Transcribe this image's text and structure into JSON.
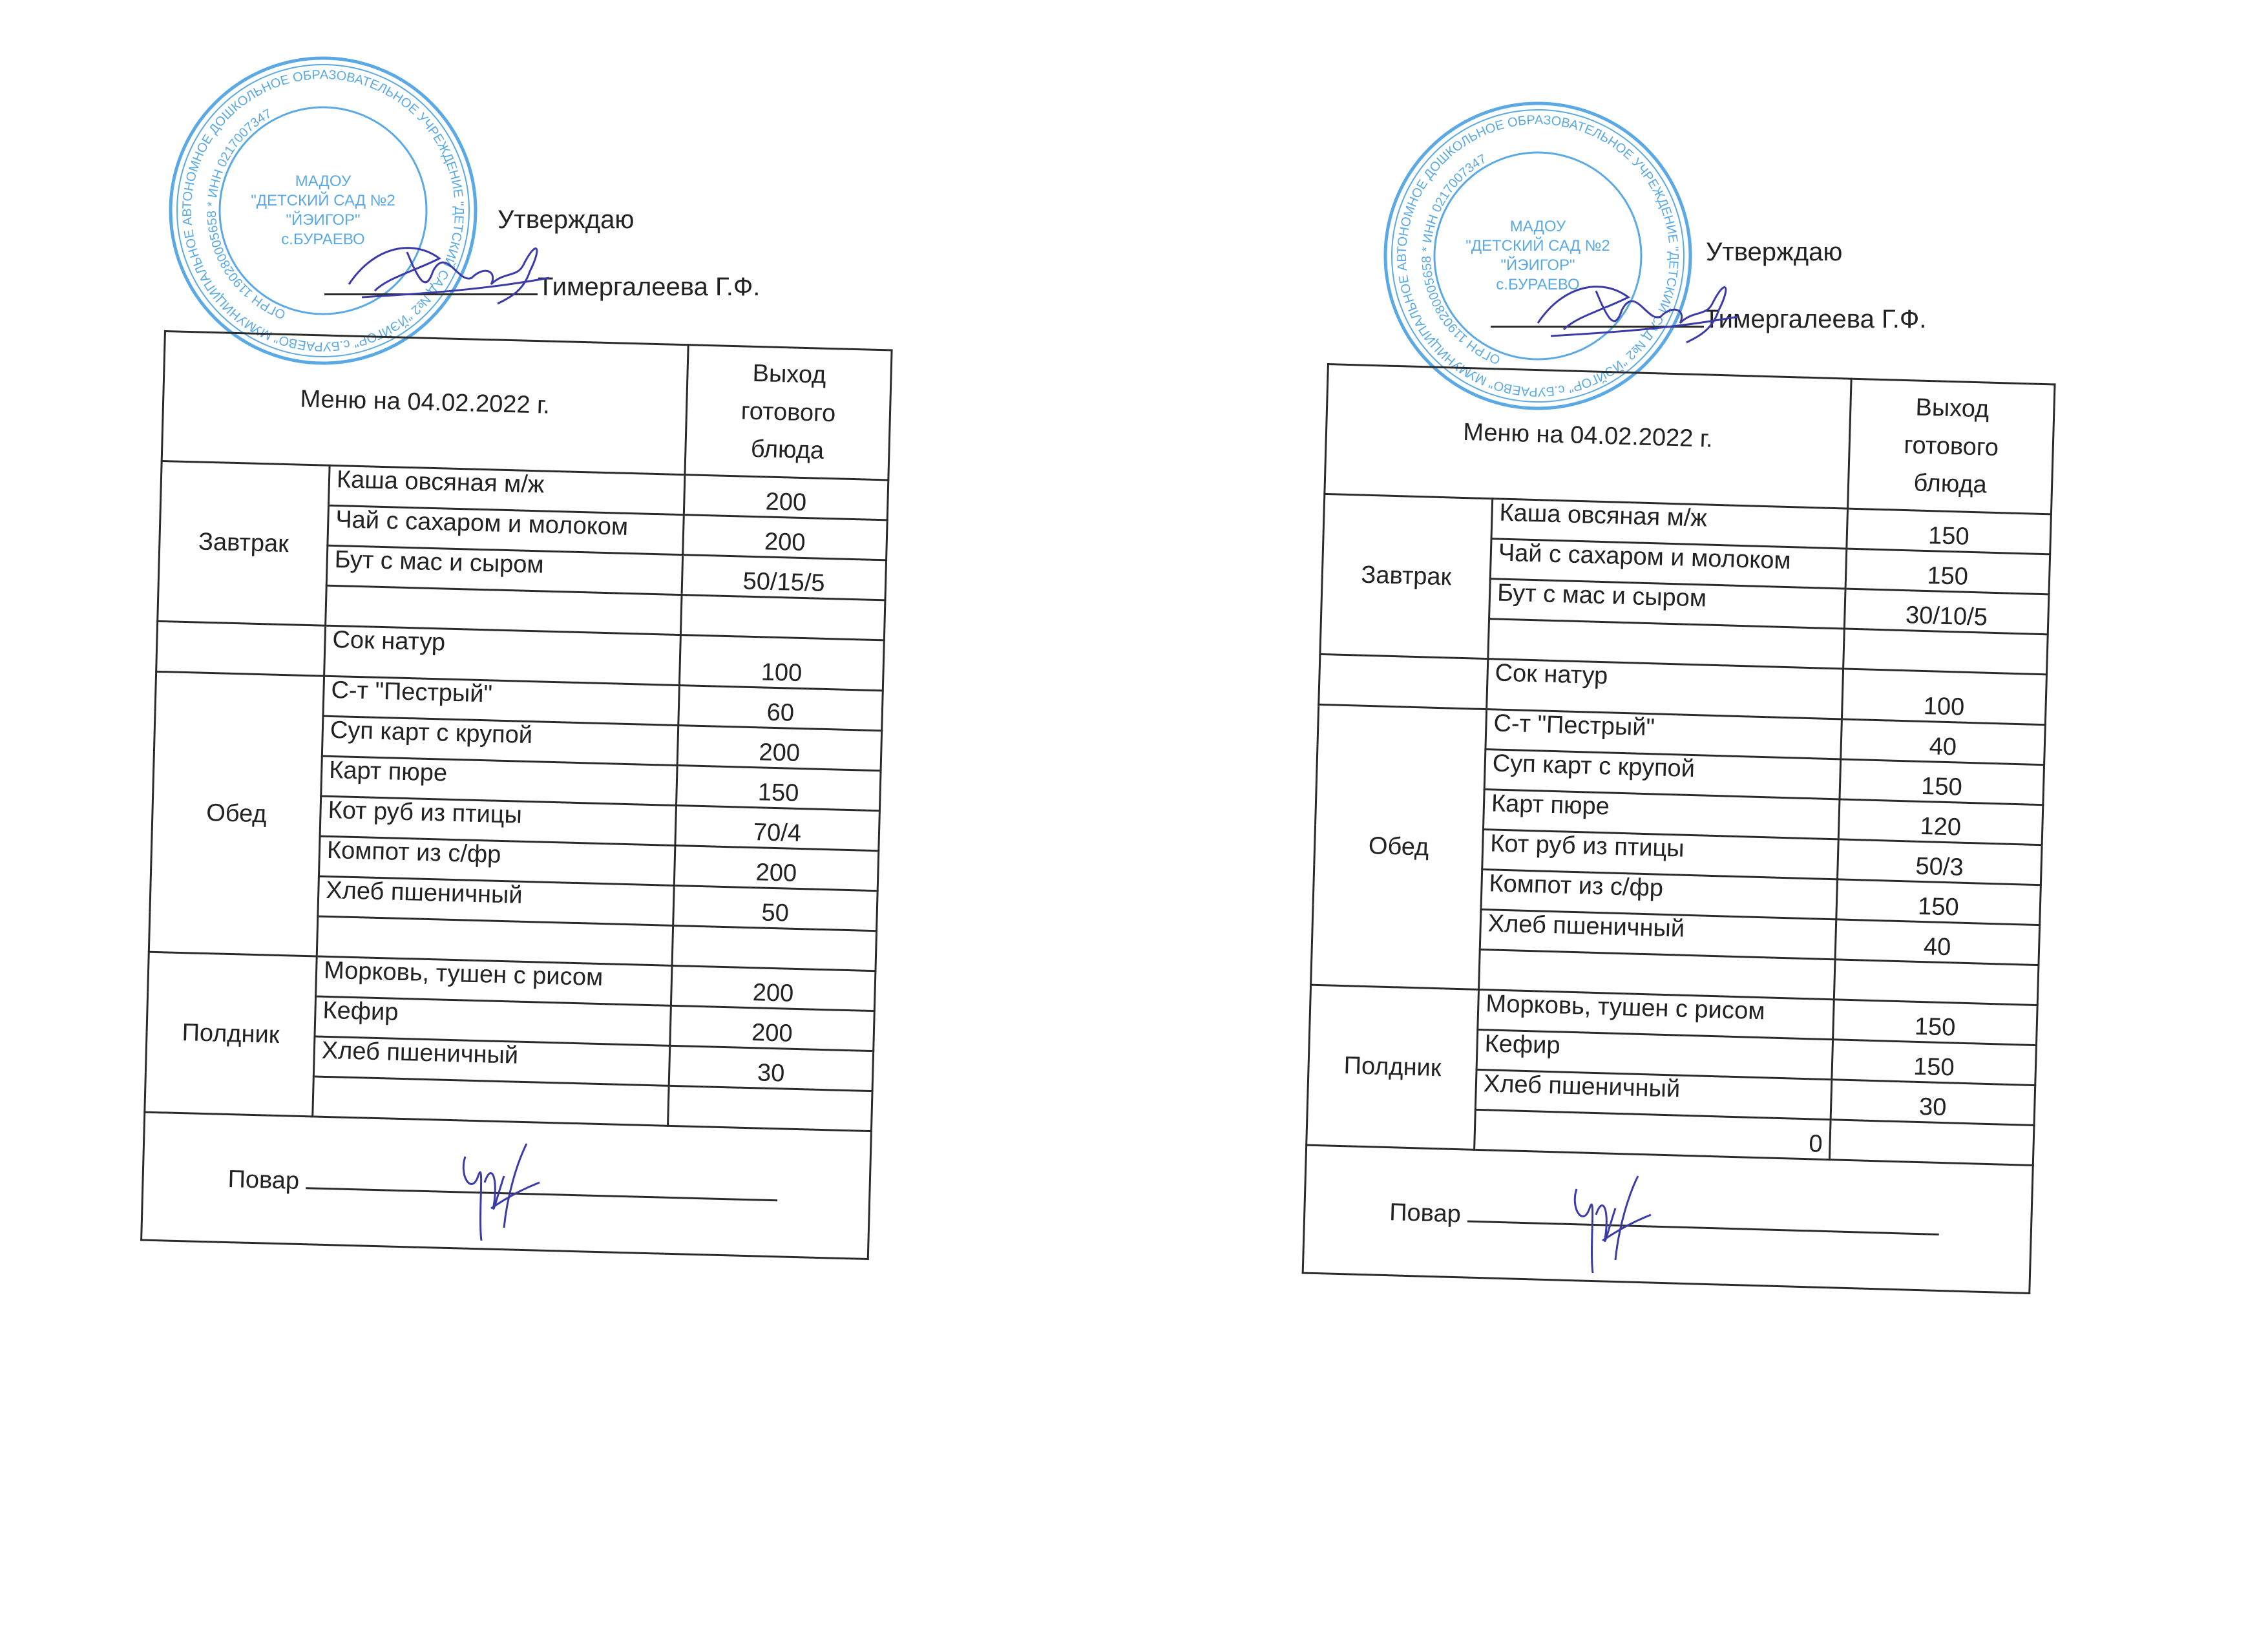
{
  "stamp_text": {
    "outer": "МУНИЦИПАЛЬНОЕ АВТОНОМНОЕ ДОШКОЛЬНОЕ ОБРАЗОВАТЕЛЬНОЕ УЧРЕЖДЕНИЕ \"ДЕТСКИЙ САД №2 \"ЙЭЙГОР\" с.БУРАЕВО\" МУНИЦИПАЛЬНОГО РАЙОНА БУРАЕВСКИЙ РАЙОН РЕСПУБЛИКИ БАШКОРТОСТАН",
    "inner": "ОГРН 1190280005658",
    "center": [
      "МАДОУ",
      "\"ДЕТСКИЙ САД №2",
      "\"ЙЭИГОР\"",
      "с.БУРАЕВО"
    ],
    "inn": "ИНН 0217007347"
  },
  "colors": {
    "stamp": "#3f9be0",
    "ink": "#2a2a2a",
    "signature": "#3a3aa8"
  },
  "menus": [
    {
      "approve": "Утверждаю",
      "approver": "Тимергалеева Г.Ф.",
      "title": "Меню на 04.02.2022 г.",
      "qty_header": [
        "Выход",
        "готового",
        "блюда"
      ],
      "breakfast": {
        "label": "Завтрак",
        "items": [
          [
            "Каша овсяная м/ж",
            "200"
          ],
          [
            "Чай с сахаром и молоком",
            "200"
          ],
          [
            "Бут с мас и сыром",
            "50/15/5"
          ],
          [
            "",
            ""
          ]
        ]
      },
      "snack": {
        "label": "",
        "items": [
          [
            "Сок натур",
            "100"
          ]
        ]
      },
      "lunch": {
        "label": "Обед",
        "items": [
          [
            "С-т \"Пестрый\"",
            "60"
          ],
          [
            "Суп карт с крупой",
            "200"
          ],
          [
            "Карт пюре",
            "150"
          ],
          [
            "Кот руб из птицы",
            "70/4"
          ],
          [
            "Компот из с/фр",
            "200"
          ],
          [
            "Хлеб пшеничный",
            "50"
          ],
          [
            "",
            ""
          ]
        ]
      },
      "afternoon": {
        "label": "Полдник",
        "items": [
          [
            "Морковь, тушен с рисом",
            "200"
          ],
          [
            "Кефир",
            "200"
          ],
          [
            "Хлеб пшеничный",
            "30"
          ],
          [
            "",
            ""
          ]
        ]
      },
      "cook": "Повар"
    },
    {
      "approve": "Утверждаю",
      "approver": "Тимергалеева Г.Ф.",
      "title": "Меню на 04.02.2022 г.",
      "qty_header": [
        "Выход",
        "готового",
        "блюда"
      ],
      "breakfast": {
        "label": "Завтрак",
        "items": [
          [
            "Каша овсяная м/ж",
            "150"
          ],
          [
            "Чай с сахаром и молоком",
            "150"
          ],
          [
            "Бут с мас и сыром",
            "30/10/5"
          ],
          [
            "",
            ""
          ]
        ]
      },
      "snack": {
        "label": "",
        "items": [
          [
            "Сок натур",
            "100"
          ]
        ]
      },
      "lunch": {
        "label": "Обед",
        "items": [
          [
            "С-т \"Пестрый\"",
            "40"
          ],
          [
            "Суп карт с крупой",
            "150"
          ],
          [
            "Карт пюре",
            "120"
          ],
          [
            "Кот руб из птицы",
            "50/3"
          ],
          [
            "Компот из с/фр",
            "150"
          ],
          [
            "Хлеб пшеничный",
            "40"
          ],
          [
            "",
            ""
          ]
        ]
      },
      "afternoon": {
        "label": "Полдник",
        "items": [
          [
            "Морковь, тушен с рисом",
            "150"
          ],
          [
            "Кефир",
            "150"
          ],
          [
            "Хлеб пшеничный",
            "30"
          ],
          [
            "0",
            ""
          ]
        ]
      },
      "cook": "Повар"
    }
  ]
}
